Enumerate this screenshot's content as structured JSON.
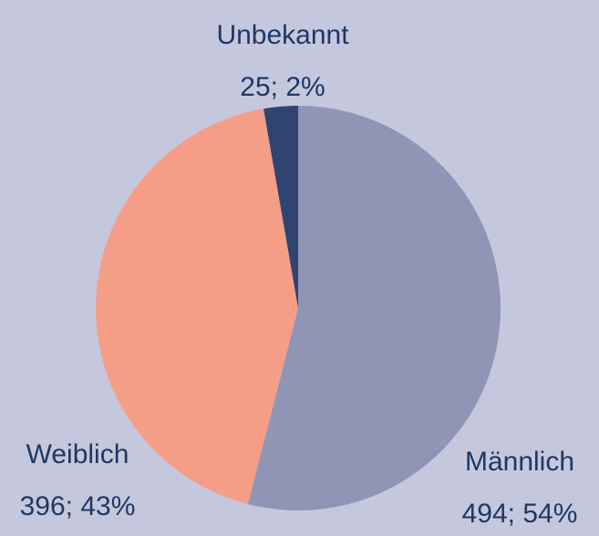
{
  "chart_data": {
    "type": "pie",
    "categories": [
      "Männlich",
      "Weiblich",
      "Unbekannt"
    ],
    "values": [
      494,
      396,
      25
    ],
    "value_labels": [
      "494; 54%",
      "396; 43%",
      "25; 2%"
    ],
    "colors": [
      "#8f96b5",
      "#f49e88",
      "#2f4470"
    ]
  }
}
